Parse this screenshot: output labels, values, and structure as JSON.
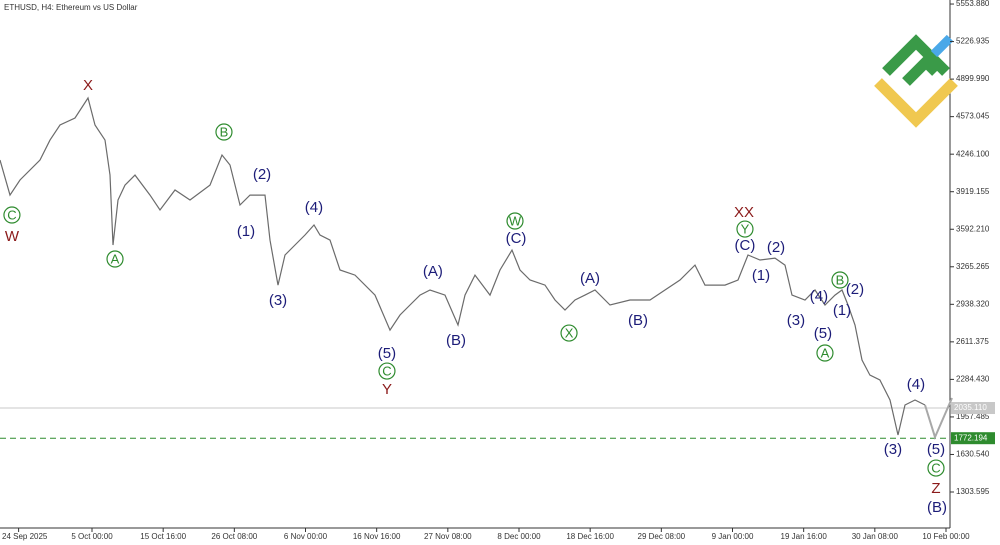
{
  "chart_data": {
    "type": "line",
    "title": "ETHUSD, H4:  Ethereum vs US Dollar",
    "xlim": [
      -2.79,
      139.3
    ],
    "ylim": [
      990,
      5589
    ],
    "xticks": [
      {
        "value": 0,
        "label": "24 Sep 2025"
      },
      {
        "value": 11,
        "label": "5 Oct 00:00"
      },
      {
        "value": 21.667,
        "label": "15 Oct 16:00"
      },
      {
        "value": 32.333,
        "label": "26 Oct 08:00"
      },
      {
        "value": 43,
        "label": "6 Nov 00:00"
      },
      {
        "value": 53.667,
        "label": "16 Nov 16:00"
      },
      {
        "value": 64.333,
        "label": "27 Nov 08:00"
      },
      {
        "value": 75,
        "label": "8 Dec 00:00"
      },
      {
        "value": 85.667,
        "label": "18 Dec 16:00"
      },
      {
        "value": 96.333,
        "label": "29 Dec 08:00"
      },
      {
        "value": 107,
        "label": "9 Jan 00:00"
      },
      {
        "value": 117.667,
        "label": "19 Jan 16:00"
      },
      {
        "value": 128.333,
        "label": "30 Jan 08:00"
      },
      {
        "value": 139,
        "label": "10 Feb 00:00"
      }
    ],
    "yticks": [
      {
        "value": 5553.88,
        "label": "5553.880"
      },
      {
        "value": 5226.935,
        "label": "5226.935"
      },
      {
        "value": 4899.99,
        "label": "4899.990"
      },
      {
        "value": 4573.045,
        "label": "4573.045"
      },
      {
        "value": 4246.1,
        "label": "4246.100"
      },
      {
        "value": 3919.155,
        "label": "3919.155"
      },
      {
        "value": 3592.21,
        "label": "3592.210"
      },
      {
        "value": 3265.265,
        "label": "3265.265"
      },
      {
        "value": 2938.32,
        "label": "2938.320"
      },
      {
        "value": 2611.375,
        "label": "2611.375"
      },
      {
        "value": 2284.43,
        "label": "2284.430"
      },
      {
        "value": 1957.485,
        "label": "1957.485"
      },
      {
        "value": 1630.54,
        "label": "1630.540"
      },
      {
        "value": 1303.595,
        "label": "1303.595"
      }
    ],
    "series": [
      {
        "color": "#6b6b6b",
        "x": [
          -2.79,
          -1.29,
          0.21,
          3.2,
          4.7,
          6.2,
          8.45,
          10.4,
          11.45,
          12.95,
          13.7,
          14.15,
          14.9,
          15.95,
          17.44,
          19.69,
          21.19,
          23.44,
          25.69,
          28.68,
          30.48,
          31.68,
          33.18,
          34.68,
          36.93,
          37.68,
          38.88,
          39.93,
          41.42,
          42.92,
          44.27,
          45.17,
          46.67,
          48.17,
          50.42,
          53.42,
          55.66,
          57.16,
          58.66,
          60.16,
          61.66,
          63.91,
          65.86,
          66.9,
          68.4,
          70.65,
          72.15,
          73.95,
          75.15,
          76.65,
          78.89,
          80.39,
          81.89,
          83.39,
          84.89,
          86.39,
          88.64,
          91.63,
          94.63,
          96.88,
          99.13,
          101.38,
          102.88,
          105.87,
          107.82,
          109.32,
          111.12,
          113.37,
          114.87,
          115.92,
          117.86,
          119.36,
          120.86,
          122.36,
          123.41,
          124.31,
          125.36,
          126.41,
          127.6,
          129.1,
          130.6,
          131.8,
          132.85,
          134.35,
          135.85
        ],
        "values": [
          4195,
          3890,
          4021,
          4195,
          4369,
          4500,
          4561,
          4735,
          4500,
          4369,
          4064,
          3455,
          3847,
          3977,
          4064,
          3890,
          3760,
          3934,
          3847,
          3977,
          4239,
          4152,
          3803,
          3890,
          3890,
          3498,
          3106,
          3368,
          3455,
          3542,
          3629,
          3542,
          3498,
          3237,
          3193,
          3019,
          2714,
          2845,
          2932,
          3019,
          3063,
          3019,
          2758,
          3019,
          3193,
          3019,
          3237,
          3411,
          3237,
          3150,
          3106,
          2976,
          2889,
          2976,
          3019,
          3063,
          2932,
          2976,
          2976,
          3063,
          3150,
          3280,
          3106,
          3106,
          3150,
          3368,
          3324,
          3341,
          3280,
          3019,
          2976,
          3063,
          2932,
          3019,
          3063,
          2932,
          2758,
          2453,
          2322,
          2279,
          2105,
          1800,
          2061,
          2105,
          2061
        ]
      },
      {
        "color": "#a8a8a8",
        "x": [
          135.85,
          137.35,
          139.9
        ],
        "values": [
          2061,
          1782,
          2122
        ]
      }
    ],
    "hlines": [
      {
        "value": 2035.11,
        "label": "2035.110",
        "color": "#c8c8c8",
        "style": "solid"
      },
      {
        "value": 1772.194,
        "label": "1772.194",
        "color": "#2e8b2e",
        "style": "dashed"
      }
    ],
    "annotations": [
      {
        "text": "X",
        "x": 10.4,
        "y": 4848,
        "color": "#8b1a1a",
        "circled": false
      },
      {
        "text": "C",
        "x": -1.0,
        "y": 3716,
        "color": "#2e8b2e",
        "circled": true
      },
      {
        "text": "W",
        "x": -1.0,
        "y": 3533,
        "color": "#8b1a1a",
        "circled": false
      },
      {
        "text": "A",
        "x": 14.45,
        "y": 3333,
        "color": "#2e8b2e",
        "circled": true
      },
      {
        "text": "B",
        "x": 30.78,
        "y": 4439,
        "color": "#2e8b2e",
        "circled": true
      },
      {
        "text": "(2)",
        "x": 36.48,
        "y": 4073,
        "color": "#1c1c78",
        "circled": false
      },
      {
        "text": "(1)",
        "x": 34.08,
        "y": 3577,
        "color": "#1c1c78",
        "circled": false
      },
      {
        "text": "(3)",
        "x": 38.88,
        "y": 2976,
        "color": "#1c1c78",
        "circled": false
      },
      {
        "text": "(4)",
        "x": 44.27,
        "y": 3786,
        "color": "#1c1c78",
        "circled": false
      },
      {
        "text": "(5)",
        "x": 55.21,
        "y": 2514,
        "color": "#1c1c78",
        "circled": false
      },
      {
        "text": "C",
        "x": 55.21,
        "y": 2357,
        "color": "#2e8b2e",
        "circled": true
      },
      {
        "text": "Y",
        "x": 55.21,
        "y": 2200,
        "color": "#8b1a1a",
        "circled": false
      },
      {
        "text": "(A)",
        "x": 62.1,
        "y": 3228,
        "color": "#1c1c78",
        "circled": false
      },
      {
        "text": "(B)",
        "x": 65.56,
        "y": 2627,
        "color": "#1c1c78",
        "circled": false
      },
      {
        "text": "W",
        "x": 74.4,
        "y": 3664,
        "color": "#2e8b2e",
        "circled": true
      },
      {
        "text": "(C)",
        "x": 74.55,
        "y": 3516,
        "color": "#1c1c78",
        "circled": false
      },
      {
        "text": "X",
        "x": 82.5,
        "y": 2688,
        "color": "#2e8b2e",
        "circled": true
      },
      {
        "text": "(A)",
        "x": 85.64,
        "y": 3167,
        "color": "#1c1c78",
        "circled": false
      },
      {
        "text": "(B)",
        "x": 92.83,
        "y": 2801,
        "color": "#1c1c78",
        "circled": false
      },
      {
        "text": "XX",
        "x": 108.72,
        "y": 3742,
        "color": "#8b1a1a",
        "circled": false
      },
      {
        "text": "Y",
        "x": 108.87,
        "y": 3594,
        "color": "#2e8b2e",
        "circled": true
      },
      {
        "text": "(C)",
        "x": 108.87,
        "y": 3455,
        "color": "#1c1c78",
        "circled": false
      },
      {
        "text": "(1)",
        "x": 111.27,
        "y": 3193,
        "color": "#1c1c78",
        "circled": false
      },
      {
        "text": "(2)",
        "x": 113.52,
        "y": 3437,
        "color": "#1c1c78",
        "circled": false
      },
      {
        "text": "(3)",
        "x": 116.51,
        "y": 2801,
        "color": "#1c1c78",
        "circled": false
      },
      {
        "text": "(4)",
        "x": 119.96,
        "y": 3010,
        "color": "#1c1c78",
        "circled": false
      },
      {
        "text": "(5)",
        "x": 120.56,
        "y": 2688,
        "color": "#1c1c78",
        "circled": false
      },
      {
        "text": "A",
        "x": 120.86,
        "y": 2514,
        "color": "#2e8b2e",
        "circled": true
      },
      {
        "text": "B",
        "x": 123.11,
        "y": 3150,
        "color": "#2e8b2e",
        "circled": true
      },
      {
        "text": "(2)",
        "x": 125.36,
        "y": 3071,
        "color": "#1c1c78",
        "circled": false
      },
      {
        "text": "(1)",
        "x": 123.41,
        "y": 2889,
        "color": "#1c1c78",
        "circled": false
      },
      {
        "text": "(4)",
        "x": 134.5,
        "y": 2244,
        "color": "#1c1c78",
        "circled": false
      },
      {
        "text": "(3)",
        "x": 131.05,
        "y": 1678,
        "color": "#1c1c78",
        "circled": false
      },
      {
        "text": "(5)",
        "x": 137.5,
        "y": 1678,
        "color": "#1c1c78",
        "circled": false
      },
      {
        "text": "C",
        "x": 137.5,
        "y": 1512,
        "color": "#2e8b2e",
        "circled": true
      },
      {
        "text": "Z",
        "x": 137.5,
        "y": 1338,
        "color": "#8b1a1a",
        "circled": false
      },
      {
        "text": "(B)",
        "x": 137.65,
        "y": 1173,
        "color": "#1c1c78",
        "circled": false
      }
    ]
  }
}
